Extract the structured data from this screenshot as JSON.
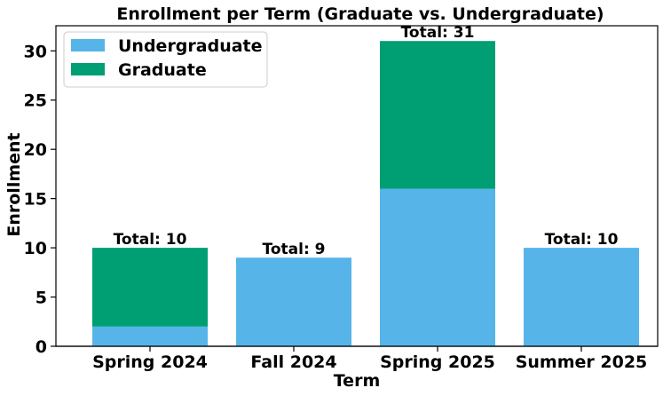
{
  "chart_data": {
    "type": "bar",
    "stacked": true,
    "title": "Enrollment per Term (Graduate vs. Undergraduate)",
    "xlabel": "Term",
    "ylabel": "Enrollment",
    "categories": [
      "Spring 2024",
      "Fall 2024",
      "Spring 2025",
      "Summer 2025"
    ],
    "series": [
      {
        "name": "Undergraduate",
        "values": [
          2,
          9,
          16,
          10
        ],
        "color": "#56B4E9"
      },
      {
        "name": "Graduate",
        "values": [
          8,
          0,
          15,
          0
        ],
        "color": "#009E73"
      }
    ],
    "totals": [
      10,
      9,
      31,
      10
    ],
    "total_labels": [
      "Total: 10",
      "Total: 9",
      "Total: 31",
      "Total: 10"
    ],
    "ylim": [
      0,
      32.55
    ],
    "yticks": [
      0,
      5,
      10,
      15,
      20,
      25,
      30
    ],
    "grid": false,
    "legend_position": "top-left"
  }
}
